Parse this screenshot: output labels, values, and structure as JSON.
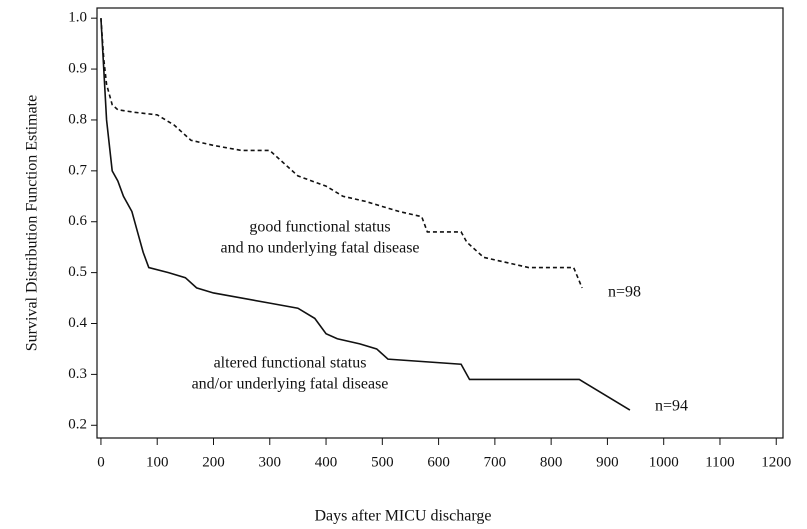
{
  "chart_data": {
    "type": "line",
    "x_label": "Days after MICU discharge",
    "y_label": "Survival Distribution Function Estimate",
    "xlim": [
      -7,
      1212
    ],
    "ylim": [
      0.175,
      1.02
    ],
    "xticks": [
      0,
      100,
      200,
      300,
      400,
      500,
      600,
      700,
      800,
      900,
      1000,
      1100,
      1200
    ],
    "yticks": [
      0.2,
      0.3,
      0.4,
      0.5,
      0.6,
      0.7,
      0.8,
      0.9,
      {
        "value": 1,
        "label": "1.0"
      }
    ],
    "series": [
      {
        "color": "#111111",
        "dashed": true,
        "x": [
          0,
          5,
          10,
          20,
          30,
          60,
          100,
          130,
          160,
          200,
          250,
          300,
          320,
          350,
          400,
          430,
          470,
          500,
          530,
          570,
          580,
          640,
          650,
          680,
          760,
          840,
          855
        ],
        "values": [
          1.0,
          0.92,
          0.87,
          0.83,
          0.82,
          0.815,
          0.81,
          0.79,
          0.76,
          0.75,
          0.74,
          0.74,
          0.72,
          0.69,
          0.67,
          0.65,
          0.64,
          0.63,
          0.62,
          0.61,
          0.58,
          0.58,
          0.56,
          0.53,
          0.51,
          0.51,
          0.47
        ]
      },
      {
        "color": "#111111",
        "dashed": false,
        "x": [
          0,
          5,
          10,
          20,
          30,
          40,
          55,
          65,
          75,
          85,
          120,
          150,
          170,
          200,
          300,
          350,
          380,
          400,
          420,
          460,
          490,
          510,
          640,
          655,
          850,
          940
        ],
        "values": [
          1.0,
          0.9,
          0.8,
          0.7,
          0.68,
          0.65,
          0.62,
          0.58,
          0.54,
          0.51,
          0.5,
          0.49,
          0.47,
          0.46,
          0.44,
          0.43,
          0.41,
          0.38,
          0.37,
          0.36,
          0.35,
          0.33,
          0.32,
          0.29,
          0.29,
          0.23
        ]
      }
    ],
    "annotations": [
      {
        "lines": [
          "good functional status",
          "and no underlying fatal disease"
        ]
      },
      {
        "lines": [
          "altered functional status",
          "and/or underlying fatal disease"
        ]
      },
      {
        "lines": [
          "n=98"
        ]
      },
      {
        "lines": [
          "n=94"
        ]
      }
    ]
  }
}
